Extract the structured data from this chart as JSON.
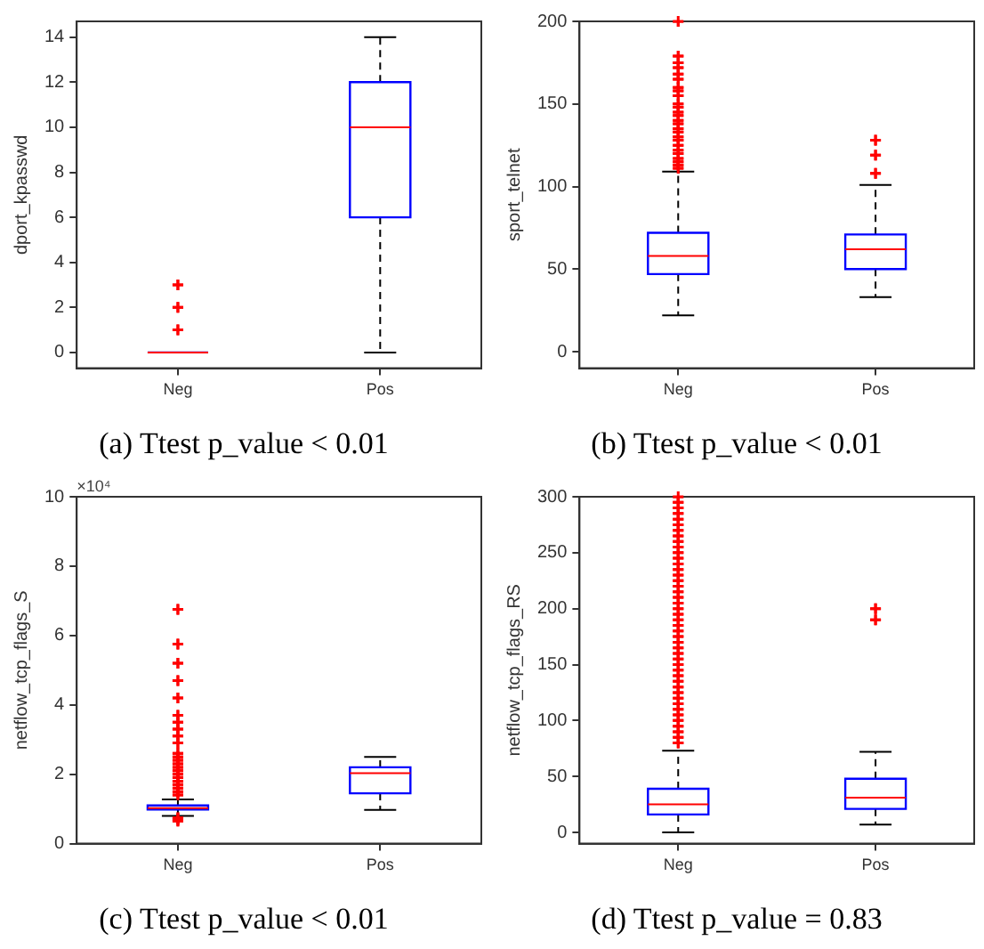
{
  "chart_data": [
    {
      "type": "box",
      "title": "(a) Ttest p_value < 0.01",
      "ylabel": "dport_kpasswd",
      "categories": [
        "Neg",
        "Pos"
      ],
      "ylim": [
        -0.7,
        14.7
      ],
      "yticks": [
        0,
        2,
        4,
        6,
        8,
        10,
        12,
        14
      ],
      "grid": false,
      "legend": false,
      "series": [
        {
          "color": "#0000ff",
          "boxes": [
            {
              "low": 0,
              "q1": 0,
              "median": 0,
              "q3": 0,
              "high": 0,
              "outliers": [
                1,
                2,
                3
              ]
            },
            {
              "low": 0,
              "q1": 6,
              "median": 10,
              "q3": 12,
              "high": 14
            }
          ]
        }
      ]
    },
    {
      "type": "box",
      "title": "(b) Ttest p_value < 0.01",
      "ylabel": "sport_telnet",
      "categories": [
        "Neg",
        "Pos"
      ],
      "ylim": [
        -10,
        200
      ],
      "yticks": [
        0,
        50,
        100,
        150,
        200
      ],
      "grid": false,
      "legend": false,
      "series": [
        {
          "color": "#0000ff",
          "boxes": [
            {
              "low": 22,
              "q1": 47,
              "median": 58,
              "q3": 72,
              "high": 109,
              "outliers": [
                111,
                113,
                115,
                117,
                120,
                122,
                125,
                128,
                130,
                133,
                135,
                138,
                140,
                143,
                145,
                148,
                150,
                155,
                158,
                160,
                165,
                168,
                172,
                175,
                179,
                200
              ]
            },
            {
              "low": 33,
              "q1": 50,
              "median": 62,
              "q3": 71,
              "high": 101,
              "outliers": [
                108,
                119,
                128
              ]
            }
          ]
        }
      ]
    },
    {
      "type": "box",
      "title": "(c) Ttest p_value < 0.01",
      "ylabel": "netflow_tcp_flags_S",
      "categories": [
        "Neg",
        "Pos"
      ],
      "ylim": [
        0,
        10
      ],
      "yticks": [
        0,
        2,
        4,
        6,
        8,
        10
      ],
      "grid": false,
      "legend": false,
      "annotations": [
        "×10⁴"
      ],
      "series": [
        {
          "color": "#0000ff",
          "boxes": [
            {
              "low": 0.8,
              "q1": 0.98,
              "median": 1.02,
              "q3": 1.1,
              "high": 1.27,
              "outliers": [
                0.65,
                0.7,
                0.75,
                1.4,
                1.5,
                1.6,
                1.7,
                1.8,
                1.9,
                2.0,
                2.1,
                2.2,
                2.3,
                2.4,
                2.5,
                2.6,
                2.9,
                3.1,
                3.3,
                3.5,
                3.7,
                4.2,
                4.7,
                5.2,
                5.75,
                6.75
              ]
            },
            {
              "low": 0.97,
              "q1": 1.45,
              "median": 2.03,
              "q3": 2.2,
              "high": 2.5
            }
          ]
        }
      ]
    },
    {
      "type": "box",
      "title": "(d) Ttest p_value = 0.83",
      "ylabel": "netflow_tcp_flags_RS",
      "categories": [
        "Neg",
        "Pos"
      ],
      "ylim": [
        -10,
        300
      ],
      "yticks": [
        0,
        50,
        100,
        150,
        200,
        250,
        300
      ],
      "grid": false,
      "legend": false,
      "series": [
        {
          "color": "#0000ff",
          "boxes": [
            {
              "low": 0,
              "q1": 16,
              "median": 25,
              "q3": 39,
              "high": 73,
              "outliers": [
                80,
                85,
                90,
                95,
                100,
                105,
                110,
                115,
                120,
                125,
                130,
                135,
                140,
                145,
                150,
                155,
                160,
                165,
                170,
                175,
                180,
                185,
                190,
                195,
                200,
                205,
                210,
                215,
                220,
                225,
                230,
                235,
                240,
                245,
                250,
                255,
                260,
                265,
                270,
                275,
                280,
                285,
                290,
                295,
                300
              ]
            },
            {
              "low": 7,
              "q1": 21,
              "median": 31,
              "q3": 48,
              "high": 72,
              "outliers": [
                190,
                200
              ]
            }
          ]
        }
      ]
    }
  ]
}
